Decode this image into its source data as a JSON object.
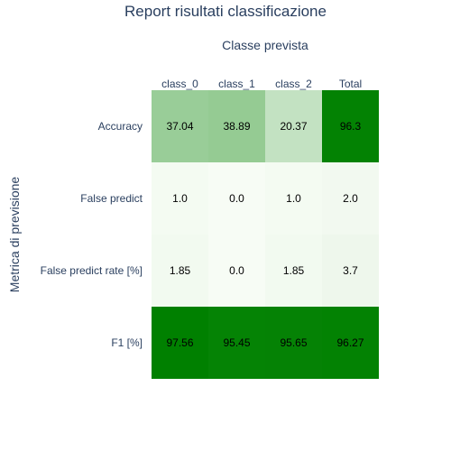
{
  "chart_data": {
    "type": "heatmap",
    "title": "Report risultati classificazione",
    "xlabel": "Classe prevista",
    "ylabel": "Metrica di previsione",
    "x_categories": [
      "class_0",
      "class_1",
      "class_2",
      "Total"
    ],
    "y_categories": [
      "Accuracy",
      "False predict",
      "False predict rate [%]",
      "F1 [%]"
    ],
    "values": [
      [
        37.04,
        38.89,
        20.37,
        96.3
      ],
      [
        1.0,
        0.0,
        1.0,
        2.0
      ],
      [
        1.85,
        0.0,
        1.85,
        3.7
      ],
      [
        97.56,
        95.45,
        95.65,
        96.27
      ]
    ],
    "value_labels": [
      [
        "37.04",
        "38.89",
        "20.37",
        "96.3"
      ],
      [
        "1.0",
        "0.0",
        "1.0",
        "2.0"
      ],
      [
        "1.85",
        "0.0",
        "1.85",
        "3.7"
      ],
      [
        "97.56",
        "95.45",
        "95.65",
        "96.27"
      ]
    ],
    "colorscale": [
      "#f7fcf5",
      "#008000"
    ],
    "x_axis_position": "top",
    "legend": "none",
    "grid": false
  }
}
